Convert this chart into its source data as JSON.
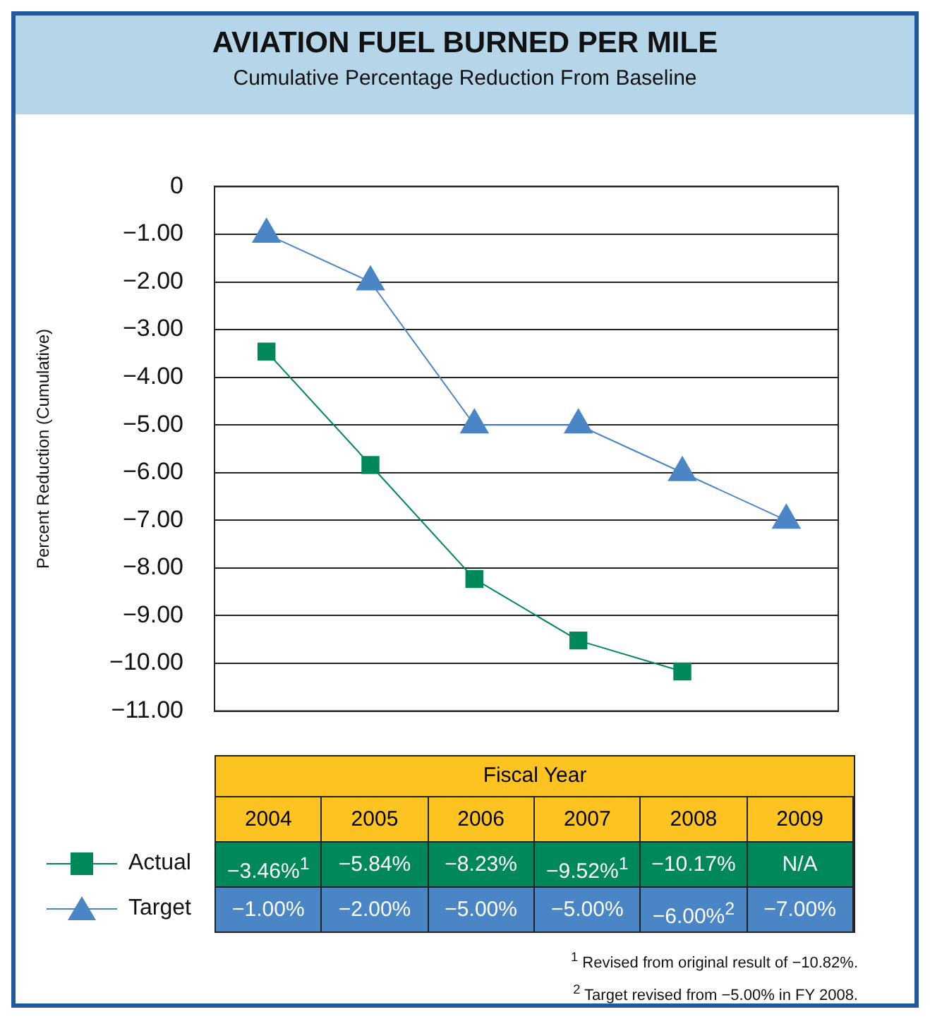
{
  "chart_data": {
    "type": "line",
    "title": "AVIATION FUEL BURNED PER MILE",
    "subtitle": "Cumulative Percentage Reduction From Baseline",
    "ylabel": "Percent Reduction (Cumulative)",
    "xlabel": "Fiscal Year",
    "categories": [
      "2004",
      "2005",
      "2006",
      "2007",
      "2008",
      "2009"
    ],
    "series": [
      {
        "name": "Actual",
        "color": "#00875a",
        "marker": "square",
        "values": [
          -3.46,
          -5.84,
          -8.23,
          -9.52,
          -10.17,
          null
        ],
        "value_labels": [
          "−3.46%$^{1}$",
          "−5.84%",
          "−8.23%",
          "−9.52%$^{1}$",
          "−10.17%",
          "N/A"
        ]
      },
      {
        "name": "Target",
        "color": "#4a86c5",
        "marker": "triangle",
        "values": [
          -1,
          -2,
          -5,
          -5,
          -6,
          -7
        ],
        "value_labels": [
          "−1.00%",
          "−2.00%",
          "−5.00%",
          "−5.00%",
          "−6.00%$^{2}$",
          "−7.00%"
        ]
      }
    ],
    "ylim": [
      -11,
      0
    ],
    "yticks": [
      0,
      {
        "value": -1,
        "label": "−1.00"
      },
      {
        "value": -2,
        "label": "−2.00"
      },
      {
        "value": -3,
        "label": "−3.00"
      },
      {
        "value": -4,
        "label": "−4.00"
      },
      {
        "value": -5,
        "label": "−5.00"
      },
      {
        "value": -6,
        "label": "−6.00"
      },
      {
        "value": -7,
        "label": "−7.00"
      },
      {
        "value": -8,
        "label": "−8.00"
      },
      {
        "value": -9,
        "label": "−9.00"
      },
      {
        "value": -10,
        "label": "−10.00"
      },
      {
        "value": -11,
        "label": "−11.00"
      }
    ],
    "grid": "y",
    "legend": "bottom left",
    "line_style": "solid",
    "annotations": [
      "$^{1}$ Revised from original result of −10.82%.",
      "$^{2}$ Target revised from −5.00% in FY 2008."
    ]
  }
}
